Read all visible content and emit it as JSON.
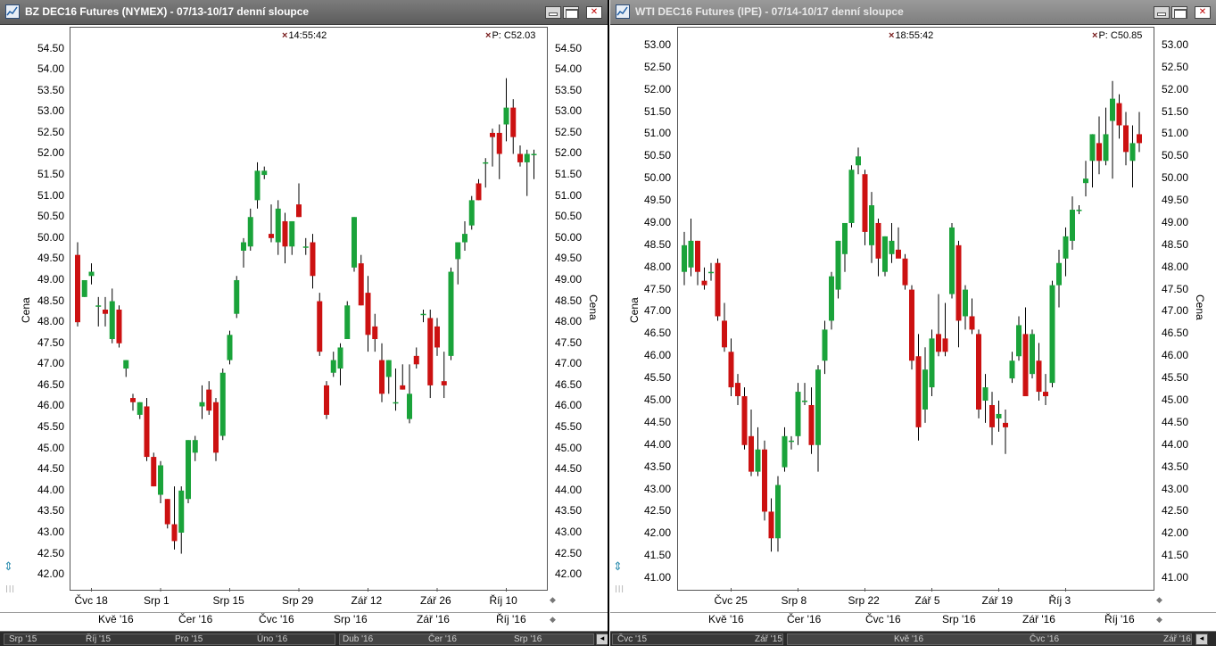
{
  "panels": [
    {
      "title": "BZ DEC16 Futures (NYMEX) - 07/13-10/17 denní sloupce",
      "time_readout": "14:55:42",
      "price_readout": "P: C52.03",
      "y_axis_label": "Cena",
      "y_ticks": [
        "54.50",
        "54.00",
        "53.50",
        "53.00",
        "52.50",
        "52.00",
        "51.50",
        "51.00",
        "50.50",
        "50.00",
        "49.50",
        "49.00",
        "48.50",
        "48.00",
        "47.50",
        "47.00",
        "46.50",
        "46.00",
        "45.50",
        "45.00",
        "44.50",
        "44.00",
        "43.50",
        "43.00",
        "42.50",
        "42.00"
      ],
      "x_ticks": [
        "Čvc 18",
        "Srp 1",
        "Srp 15",
        "Srp 29",
        "Zář 12",
        "Zář 26",
        "Říj 10"
      ],
      "months": [
        "Kvě '16",
        "Čer '16",
        "Čvc '16",
        "Srp '16",
        "Zář '16",
        "Říj '16"
      ],
      "nav_labels": [
        "Srp '15",
        "Říj '15",
        "Pro '15",
        "Úno '16",
        "Dub '16",
        "Čer '16",
        "Srp '16"
      ]
    },
    {
      "title": "WTI DEC16 Futures (IPE) - 07/14-10/17 denní sloupce",
      "time_readout": "18:55:42",
      "price_readout": "P: C50.85",
      "y_axis_label": "Cena",
      "y_ticks": [
        "53.00",
        "52.50",
        "52.00",
        "51.50",
        "51.00",
        "50.50",
        "50.00",
        "49.50",
        "49.00",
        "48.50",
        "48.00",
        "47.50",
        "47.00",
        "46.50",
        "46.00",
        "45.50",
        "45.00",
        "44.50",
        "44.00",
        "43.50",
        "43.00",
        "42.50",
        "42.00",
        "41.50",
        "41.00"
      ],
      "x_ticks": [
        "Čvc 25",
        "Srp 8",
        "Srp 22",
        "Zář 5",
        "Zář 19",
        "Říj 3"
      ],
      "months": [
        "Kvě '16",
        "Čer '16",
        "Čvc '16",
        "Srp '16",
        "Zář '16",
        "Říj '16"
      ],
      "nav_labels": [
        "Čvc '15",
        "Zář '15",
        "Kvě '16",
        "Čvc '16",
        "Zář '16"
      ]
    }
  ],
  "window_buttons": {
    "close": "✕"
  },
  "colors": {
    "up": "#1aa33a",
    "down": "#cc1111",
    "wick": "#000000",
    "title_bg": "#6a6a6a"
  },
  "chart_data": [
    {
      "type": "candlestick",
      "title": "BZ DEC16 Futures (NYMEX) - 07/13-10/17 denní sloupce",
      "ylabel": "Cena",
      "ylim": [
        41.6,
        55.0
      ],
      "x_tick_labels": [
        "Čvc 18",
        "Srp 1",
        "Srp 15",
        "Srp 29",
        "Zář 12",
        "Zář 26",
        "Říj 10"
      ],
      "x_tick_index": [
        2,
        12,
        22,
        32,
        42,
        52,
        62
      ],
      "ohlc": [
        [
          49.6,
          49.9,
          47.9,
          48.0
        ],
        [
          48.6,
          49.0,
          48.6,
          49.0
        ],
        [
          49.1,
          49.4,
          48.9,
          49.2
        ],
        [
          48.4,
          48.6,
          47.9,
          48.4
        ],
        [
          48.3,
          48.6,
          47.9,
          48.2
        ],
        [
          47.6,
          48.8,
          47.5,
          48.5
        ],
        [
          48.3,
          48.4,
          47.4,
          47.5
        ],
        [
          46.9,
          47.1,
          46.7,
          47.1
        ],
        [
          46.2,
          46.3,
          45.9,
          46.1
        ],
        [
          45.8,
          46.1,
          45.7,
          46.1
        ],
        [
          46.0,
          46.2,
          44.7,
          44.8
        ],
        [
          44.8,
          44.9,
          44.1,
          44.1
        ],
        [
          43.9,
          44.7,
          43.7,
          44.6
        ],
        [
          43.8,
          43.8,
          43.1,
          43.2
        ],
        [
          43.2,
          44.1,
          42.6,
          42.8
        ],
        [
          43.0,
          44.1,
          42.5,
          44.0
        ],
        [
          43.8,
          45.2,
          43.7,
          45.2
        ],
        [
          44.9,
          45.3,
          44.7,
          45.2
        ],
        [
          46.0,
          46.5,
          45.7,
          46.1
        ],
        [
          46.4,
          46.6,
          45.8,
          45.9
        ],
        [
          46.1,
          46.2,
          44.7,
          44.9
        ],
        [
          45.3,
          46.9,
          45.2,
          46.8
        ],
        [
          47.1,
          47.8,
          47.0,
          47.7
        ],
        [
          48.2,
          49.1,
          48.1,
          49.0
        ],
        [
          49.7,
          50.0,
          49.3,
          49.9
        ],
        [
          49.8,
          50.7,
          49.7,
          50.5
        ],
        [
          50.9,
          51.8,
          50.7,
          51.6
        ],
        [
          51.5,
          51.7,
          51.4,
          51.6
        ],
        [
          50.1,
          50.8,
          49.9,
          50.0
        ],
        [
          49.9,
          50.9,
          49.6,
          50.7
        ],
        [
          50.4,
          50.6,
          49.4,
          49.8
        ],
        [
          49.8,
          50.4,
          49.6,
          50.4
        ],
        [
          50.8,
          51.3,
          50.5,
          50.5
        ],
        [
          49.8,
          50.0,
          49.6,
          49.8
        ],
        [
          49.9,
          50.1,
          48.8,
          49.1
        ],
        [
          48.5,
          48.7,
          47.2,
          47.3
        ],
        [
          46.5,
          46.6,
          45.7,
          45.8
        ],
        [
          46.8,
          47.3,
          46.7,
          47.1
        ],
        [
          46.9,
          47.5,
          46.5,
          47.4
        ],
        [
          47.6,
          48.5,
          47.6,
          48.4
        ],
        [
          49.3,
          50.5,
          49.2,
          50.5
        ],
        [
          49.4,
          49.6,
          48.4,
          48.4
        ],
        [
          48.7,
          49.1,
          47.3,
          47.7
        ],
        [
          47.9,
          48.2,
          47.3,
          47.6
        ],
        [
          47.1,
          47.5,
          46.1,
          46.3
        ],
        [
          46.7,
          47.1,
          46.3,
          47.1
        ],
        [
          46.1,
          46.9,
          45.9,
          46.1
        ],
        [
          46.5,
          47.0,
          46.4,
          46.4
        ],
        [
          45.7,
          47.0,
          45.6,
          46.3
        ],
        [
          47.2,
          47.4,
          46.9,
          47.0
        ],
        [
          48.2,
          48.3,
          48.0,
          48.2
        ],
        [
          48.1,
          48.3,
          46.2,
          46.5
        ],
        [
          47.9,
          48.1,
          47.2,
          47.4
        ],
        [
          46.6,
          47.3,
          46.2,
          46.5
        ],
        [
          47.2,
          49.3,
          47.1,
          49.2
        ],
        [
          49.5,
          49.9,
          48.9,
          49.9
        ],
        [
          49.9,
          50.4,
          49.7,
          50.1
        ],
        [
          50.3,
          51.0,
          50.2,
          50.9
        ],
        [
          51.3,
          51.4,
          50.9,
          50.9
        ],
        [
          51.8,
          51.9,
          51.2,
          51.8
        ],
        [
          52.5,
          52.6,
          51.7,
          52.4
        ],
        [
          52.5,
          52.7,
          51.4,
          52.0
        ],
        [
          52.7,
          53.8,
          52.3,
          53.1
        ],
        [
          53.1,
          53.3,
          52.0,
          52.4
        ],
        [
          52.0,
          52.2,
          51.7,
          51.8
        ],
        [
          51.8,
          52.1,
          51.0,
          52.0
        ],
        [
          52.0,
          52.1,
          51.4,
          52.0
        ]
      ]
    },
    {
      "type": "candlestick",
      "title": "WTI DEC16 Futures (IPE) - 07/14-10/17 denní sloupce",
      "ylabel": "Cena",
      "ylim": [
        40.7,
        53.4
      ],
      "x_tick_labels": [
        "Čvc 25",
        "Srp 8",
        "Srp 22",
        "Zář 5",
        "Zář 19",
        "Říj 3"
      ],
      "x_tick_index": [
        7,
        17,
        27,
        37,
        47,
        57
      ],
      "ohlc": [
        [
          47.9,
          48.8,
          47.6,
          48.5
        ],
        [
          48.0,
          49.1,
          47.8,
          48.6
        ],
        [
          48.6,
          48.6,
          47.6,
          47.9
        ],
        [
          47.7,
          48.0,
          47.5,
          47.6
        ],
        [
          47.9,
          48.1,
          47.7,
          47.9
        ],
        [
          48.1,
          48.2,
          46.8,
          46.9
        ],
        [
          46.8,
          47.2,
          46.1,
          46.2
        ],
        [
          46.1,
          46.4,
          45.1,
          45.3
        ],
        [
          45.4,
          45.6,
          44.9,
          45.1
        ],
        [
          45.1,
          45.3,
          43.9,
          44.0
        ],
        [
          44.2,
          44.8,
          43.3,
          43.4
        ],
        [
          43.4,
          44.4,
          43.3,
          43.9
        ],
        [
          43.9,
          44.1,
          42.3,
          42.5
        ],
        [
          42.5,
          42.8,
          41.6,
          41.9
        ],
        [
          41.9,
          43.3,
          41.6,
          43.1
        ],
        [
          43.5,
          44.4,
          43.4,
          44.2
        ],
        [
          44.1,
          44.2,
          43.9,
          44.1
        ],
        [
          44.2,
          45.4,
          44.0,
          45.2
        ],
        [
          45.0,
          45.4,
          44.9,
          45.0
        ],
        [
          44.9,
          45.3,
          43.8,
          44.0
        ],
        [
          44.0,
          45.8,
          43.4,
          45.7
        ],
        [
          45.9,
          46.8,
          45.6,
          46.6
        ],
        [
          46.8,
          47.9,
          46.6,
          47.8
        ],
        [
          47.5,
          48.6,
          47.3,
          48.6
        ],
        [
          48.3,
          49.0,
          47.9,
          49.0
        ],
        [
          49.0,
          50.3,
          48.9,
          50.2
        ],
        [
          50.3,
          50.7,
          50.1,
          50.5
        ],
        [
          50.1,
          50.2,
          48.5,
          48.8
        ],
        [
          48.5,
          49.7,
          48.1,
          49.4
        ],
        [
          49.0,
          49.1,
          47.8,
          48.2
        ],
        [
          47.9,
          48.7,
          47.8,
          48.7
        ],
        [
          48.3,
          49.0,
          48.1,
          48.6
        ],
        [
          48.4,
          48.9,
          48.3,
          48.2
        ],
        [
          48.2,
          48.3,
          47.5,
          47.6
        ],
        [
          47.5,
          47.6,
          45.7,
          45.9
        ],
        [
          46.0,
          46.5,
          44.1,
          44.4
        ],
        [
          44.8,
          46.2,
          44.5,
          45.7
        ],
        [
          45.3,
          46.6,
          45.1,
          46.4
        ],
        [
          46.5,
          47.4,
          46.0,
          46.1
        ],
        [
          46.4,
          47.2,
          46.0,
          46.1
        ],
        [
          47.4,
          49.0,
          47.3,
          48.9
        ],
        [
          48.5,
          48.6,
          46.2,
          46.8
        ],
        [
          46.9,
          47.6,
          46.6,
          47.5
        ],
        [
          46.9,
          47.3,
          46.5,
          46.6
        ],
        [
          46.5,
          46.6,
          44.6,
          44.8
        ],
        [
          45.0,
          45.6,
          44.5,
          45.3
        ],
        [
          44.9,
          45.2,
          44.0,
          44.4
        ],
        [
          44.6,
          45.0,
          44.3,
          44.7
        ],
        [
          44.5,
          44.8,
          43.8,
          44.4
        ],
        [
          45.5,
          46.1,
          45.4,
          45.9
        ],
        [
          46.0,
          46.9,
          45.9,
          46.7
        ],
        [
          46.5,
          47.1,
          45.1,
          45.1
        ],
        [
          45.6,
          46.6,
          45.5,
          46.5
        ],
        [
          45.9,
          46.3,
          45.0,
          45.2
        ],
        [
          45.2,
          45.6,
          44.9,
          45.1
        ],
        [
          45.4,
          47.7,
          45.3,
          47.6
        ],
        [
          47.6,
          48.4,
          47.1,
          48.1
        ],
        [
          48.2,
          48.9,
          47.8,
          48.7
        ],
        [
          48.6,
          49.6,
          48.4,
          49.3
        ],
        [
          49.3,
          49.4,
          49.2,
          49.3
        ],
        [
          49.9,
          50.4,
          49.6,
          50.0
        ],
        [
          50.4,
          51.0,
          49.8,
          51.0
        ],
        [
          50.8,
          51.4,
          50.1,
          50.4
        ],
        [
          50.4,
          51.6,
          50.3,
          51.0
        ],
        [
          51.3,
          52.2,
          50.0,
          51.8
        ],
        [
          51.7,
          51.9,
          50.9,
          51.2
        ],
        [
          51.2,
          51.5,
          50.3,
          50.6
        ],
        [
          50.4,
          51.2,
          49.8,
          50.8
        ],
        [
          51.0,
          51.5,
          50.6,
          50.8
        ]
      ]
    }
  ]
}
